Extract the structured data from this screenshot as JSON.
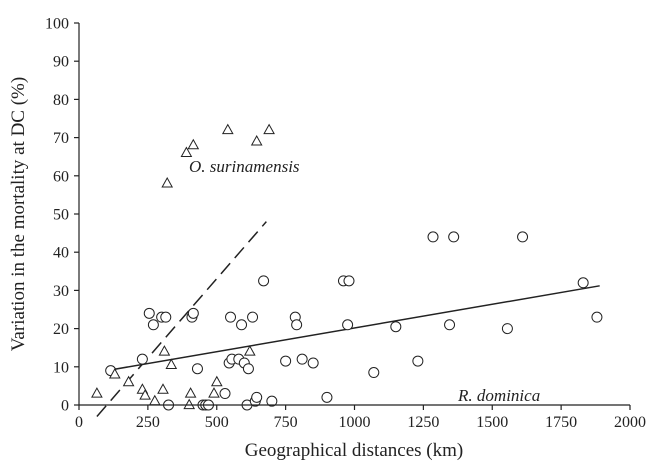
{
  "chart_data": {
    "type": "scatter",
    "xlabel": "Geographical distances (km)",
    "ylabel": "Variation in the mortality at DC (%)",
    "xlim": [
      0,
      2000
    ],
    "ylim": [
      0,
      100
    ],
    "xticks": [
      "0",
      "250",
      "500",
      "750",
      "1000",
      "1250",
      "1500",
      "1750",
      "2000"
    ],
    "yticks": [
      "0",
      "10",
      "20",
      "30",
      "40",
      "50",
      "60",
      "70",
      "80",
      "90",
      "100"
    ],
    "grid": false,
    "annotations": [
      {
        "text": "O. surinamensis",
        "x": 600,
        "y": 61
      },
      {
        "text": "R. dominica",
        "x": 1525,
        "y": 1
      }
    ],
    "series": [
      {
        "marker": "circle",
        "points": [
          [
            115,
            9
          ],
          [
            230,
            12
          ],
          [
            255,
            24
          ],
          [
            270,
            21
          ],
          [
            300,
            23
          ],
          [
            315,
            23
          ],
          [
            325,
            0
          ],
          [
            410,
            23
          ],
          [
            415,
            24
          ],
          [
            430,
            9.5
          ],
          [
            450,
            0
          ],
          [
            460,
            0
          ],
          [
            470,
            0
          ],
          [
            530,
            3
          ],
          [
            545,
            11
          ],
          [
            550,
            23
          ],
          [
            555,
            12
          ],
          [
            580,
            12
          ],
          [
            590,
            21
          ],
          [
            600,
            11
          ],
          [
            610,
            0
          ],
          [
            615,
            9.5
          ],
          [
            630,
            23
          ],
          [
            640,
            1
          ],
          [
            645,
            2
          ],
          [
            670,
            32.5
          ],
          [
            700,
            1
          ],
          [
            750,
            11.5
          ],
          [
            785,
            23
          ],
          [
            790,
            21
          ],
          [
            810,
            12
          ],
          [
            850,
            11
          ],
          [
            900,
            2
          ],
          [
            960,
            32.5
          ],
          [
            980,
            32.5
          ],
          [
            975,
            21
          ],
          [
            1070,
            8.5
          ],
          [
            1150,
            20.5
          ],
          [
            1230,
            11.5
          ],
          [
            1285,
            44
          ],
          [
            1345,
            21
          ],
          [
            1360,
            44
          ],
          [
            1555,
            20
          ],
          [
            1610,
            44
          ],
          [
            1830,
            32
          ],
          [
            1880,
            23
          ]
        ]
      },
      {
        "marker": "triangle",
        "points": [
          [
            65,
            3
          ],
          [
            130,
            8
          ],
          [
            180,
            6
          ],
          [
            230,
            4
          ],
          [
            240,
            2.5
          ],
          [
            275,
            1
          ],
          [
            305,
            4
          ],
          [
            310,
            14
          ],
          [
            320,
            58
          ],
          [
            335,
            10.5
          ],
          [
            390,
            66
          ],
          [
            400,
            0
          ],
          [
            405,
            3
          ],
          [
            415,
            68
          ],
          [
            490,
            3
          ],
          [
            500,
            6
          ],
          [
            540,
            72
          ],
          [
            620,
            14
          ],
          [
            645,
            69
          ],
          [
            690,
            72
          ]
        ]
      }
    ],
    "lines": [
      {
        "style": "solid",
        "x": [
          100,
          1890
        ],
        "y": [
          9,
          31.2
        ]
      },
      {
        "style": "dashed",
        "x": [
          65,
          680
        ],
        "y": [
          -3,
          48
        ]
      }
    ]
  }
}
